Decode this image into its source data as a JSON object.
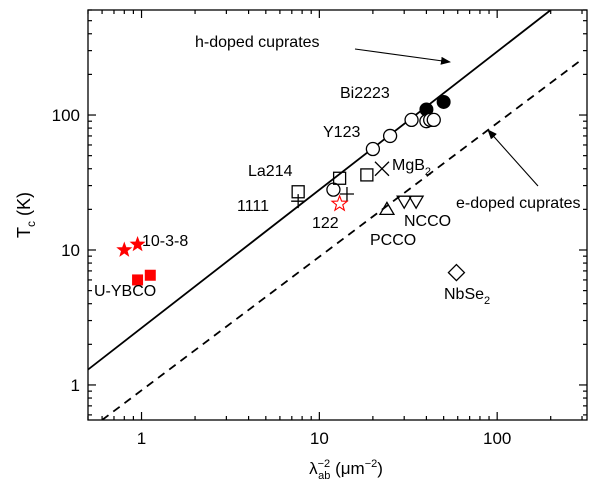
{
  "chart_data": {
    "type": "scatter",
    "x_scale": "log",
    "y_scale": "log",
    "xlim": [
      0.5,
      320
    ],
    "ylim": [
      0.55,
      600
    ],
    "x_ticks": [
      "1",
      "10",
      "100"
    ],
    "y_ticks": [
      "1",
      "10",
      "100"
    ],
    "xlabel": "λ⁻²ab (μm⁻²)",
    "ylabel": "Tc (K)",
    "grid": false,
    "lines": [
      {
        "label": "h-doped cuprates",
        "style": "solid",
        "points": [
          [
            0.5,
            1.3
          ],
          [
            200,
            600
          ]
        ]
      },
      {
        "label": "e-doped cuprates",
        "style": "dashed",
        "points": [
          [
            0.6,
            0.55
          ],
          [
            290,
            250
          ]
        ]
      }
    ],
    "series": [
      {
        "name": "Bi2223",
        "marker": "filled-circle",
        "color": "#000000",
        "points": [
          [
            40,
            110
          ],
          [
            50,
            125
          ]
        ]
      },
      {
        "name": "Y123",
        "marker": "open-circle",
        "color": "#000000",
        "points": [
          [
            12,
            28
          ],
          [
            20,
            56
          ],
          [
            25,
            70
          ],
          [
            33,
            92
          ],
          [
            40,
            90
          ],
          [
            42,
            92
          ],
          [
            44,
            92
          ]
        ]
      },
      {
        "name": "La214",
        "marker": "open-square",
        "color": "#000000",
        "points": [
          [
            7.6,
            27
          ],
          [
            13,
            34
          ],
          [
            18.5,
            36
          ]
        ]
      },
      {
        "name": "1111",
        "marker": "plus",
        "color": "#000000",
        "points": [
          [
            7.6,
            23
          ],
          [
            14.3,
            26
          ]
        ]
      },
      {
        "name": "122",
        "marker": "open-star",
        "color": "#ff0000",
        "points": [
          [
            13,
            22
          ]
        ]
      },
      {
        "name": "MgB2",
        "marker": "cross",
        "color": "#000000",
        "points": [
          [
            22.5,
            40
          ]
        ]
      },
      {
        "name": "PCCO",
        "marker": "open-triangle-up",
        "color": "#000000",
        "points": [
          [
            24,
            20
          ]
        ]
      },
      {
        "name": "NCCO",
        "marker": "open-triangle-down",
        "color": "#000000",
        "points": [
          [
            30,
            23
          ],
          [
            35,
            23
          ]
        ]
      },
      {
        "name": "NbSe2",
        "marker": "open-diamond",
        "color": "#000000",
        "points": [
          [
            59,
            6.8
          ]
        ]
      },
      {
        "name": "10-3-8",
        "marker": "filled-star",
        "color": "#ff0000",
        "points": [
          [
            0.8,
            10
          ],
          [
            0.95,
            11
          ]
        ]
      },
      {
        "name": "U-YBCO",
        "marker": "filled-square",
        "color": "#ff0000",
        "points": [
          [
            0.95,
            6
          ],
          [
            1.12,
            6.5
          ]
        ]
      }
    ],
    "annotations": [
      {
        "text": "h-doped cuprates",
        "arrow": true
      },
      {
        "text": "e-doped cuprates",
        "arrow": true
      },
      {
        "text": "Bi2223"
      },
      {
        "text": "Y123"
      },
      {
        "text": "La214"
      },
      {
        "text": "MgB",
        "sub": "2"
      },
      {
        "text": "1111"
      },
      {
        "text": "122"
      },
      {
        "text": "NCCO"
      },
      {
        "text": "PCCO"
      },
      {
        "text": "NbSe",
        "sub": "2"
      },
      {
        "text": "10-3-8"
      },
      {
        "text": "U-YBCO"
      }
    ],
    "axis": {
      "x_label_lambda": "λ",
      "x_label_sup": "−2",
      "x_label_sub": "ab",
      "x_label_units": " (μm",
      "x_label_units_sup": "−2",
      "x_label_close": ")",
      "y_label_T": "T",
      "y_label_sub": "c",
      "y_label_units": " (K)"
    }
  }
}
